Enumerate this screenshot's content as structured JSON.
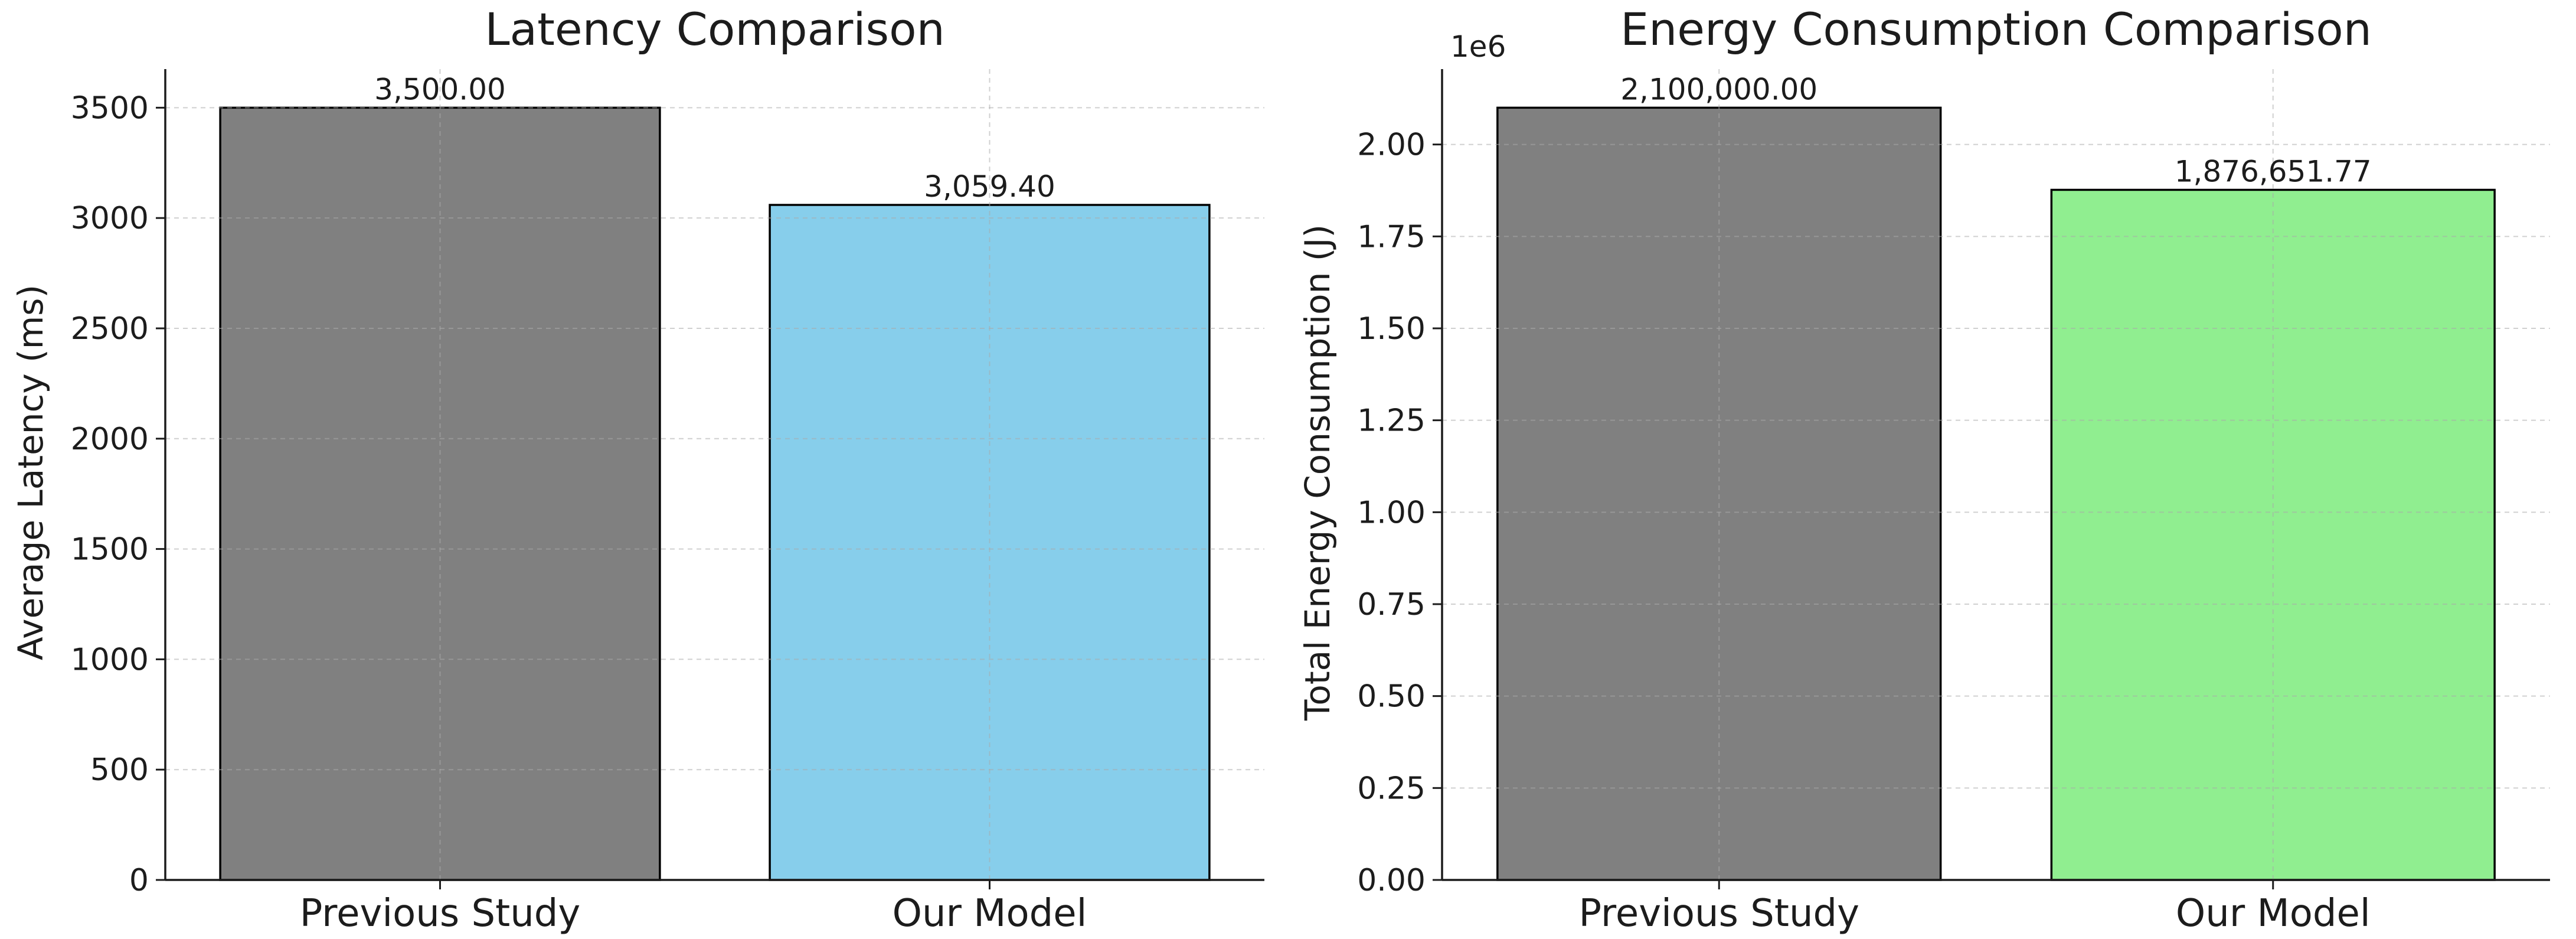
{
  "figure": {
    "type": "matplotlib-figure",
    "background": "#ffffff",
    "panels": [
      "Latency Comparison",
      "Energy Consumption Comparison"
    ]
  },
  "style": {
    "text_color": "#1c1c1c",
    "spine_color": "#1c1c1c",
    "grid_color": "#aaaaaa",
    "grid_opacity": 0.55,
    "bar_edge_color": "#000000",
    "gray_bar": "#808080",
    "skyblue_bar": "#87CEEB",
    "lightgreen_bar": "#90EE90"
  },
  "chart_data": [
    {
      "type": "bar",
      "title": "Latency Comparison",
      "xlabel": "",
      "ylabel": "Average Latency (ms)",
      "categories": [
        "Previous Study",
        "Our Model"
      ],
      "values": [
        3500.0,
        3059.4
      ],
      "bar_labels": [
        "3,500.00",
        "3,059.40"
      ],
      "bar_colors": [
        "#808080",
        "#87CEEB"
      ],
      "ylim": [
        0,
        3675
      ],
      "yticks": [
        0,
        500,
        1000,
        1500,
        2000,
        2500,
        3000,
        3500
      ],
      "ytick_labels": [
        "0",
        "500",
        "1000",
        "1500",
        "2000",
        "2500",
        "3000",
        "3500"
      ],
      "offset_text": "",
      "grid": "both-dashed",
      "legend": "none",
      "bar_width_fraction": 0.8
    },
    {
      "type": "bar",
      "title": "Energy Consumption Comparison",
      "xlabel": "",
      "ylabel": "Total Energy Consumption (J)",
      "categories": [
        "Previous Study",
        "Our Model"
      ],
      "values": [
        2100000.0,
        1876651.77
      ],
      "bar_labels": [
        "2,100,000.00",
        "1,876,651.77"
      ],
      "bar_colors": [
        "#808080",
        "#90EE90"
      ],
      "ylim": [
        0,
        2205000
      ],
      "yticks": [
        0,
        250000,
        500000,
        750000,
        1000000,
        1250000,
        1500000,
        1750000,
        2000000
      ],
      "ytick_labels": [
        "0.00",
        "0.25",
        "0.50",
        "0.75",
        "1.00",
        "1.25",
        "1.50",
        "1.75",
        "2.00"
      ],
      "offset_text": "1e6",
      "grid": "both-dashed",
      "legend": "none",
      "bar_width_fraction": 0.8
    }
  ]
}
